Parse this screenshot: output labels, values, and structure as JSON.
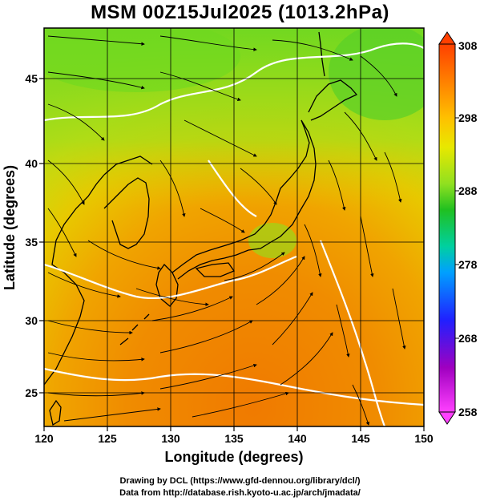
{
  "title": "MSM 00Z15Jul2025 (1013.2hPa)",
  "map": {
    "xlabel": "Longitude (degrees)",
    "ylabel": "Latitude  (degrees)",
    "lon_range": [
      120,
      150
    ],
    "lat_range": [
      22.4,
      47.6
    ],
    "lon_ticks": [
      "120",
      "125",
      "130",
      "135",
      "140",
      "145",
      "150"
    ],
    "lat_ticks": [
      "25",
      "30",
      "35",
      "40",
      "45"
    ],
    "grid": true,
    "field": "temperature with streamlines"
  },
  "colorbar": {
    "ticks": [
      "308",
      "298",
      "288",
      "278",
      "268",
      "258"
    ],
    "range": [
      258,
      308
    ],
    "colors": [
      "#ff40ff",
      "#c000c0",
      "#2020ff",
      "#00a0ff",
      "#00e0c0",
      "#20c020",
      "#80e000",
      "#e0e000",
      "#ffa000",
      "#ff4000"
    ]
  },
  "credits": {
    "line1": "Drawing by DCL (https://www.gfd-dennou.org/library/dcl/)",
    "line2": "Data from http://database.rish.kyoto-u.ac.jp/arch/jmadata/"
  }
}
